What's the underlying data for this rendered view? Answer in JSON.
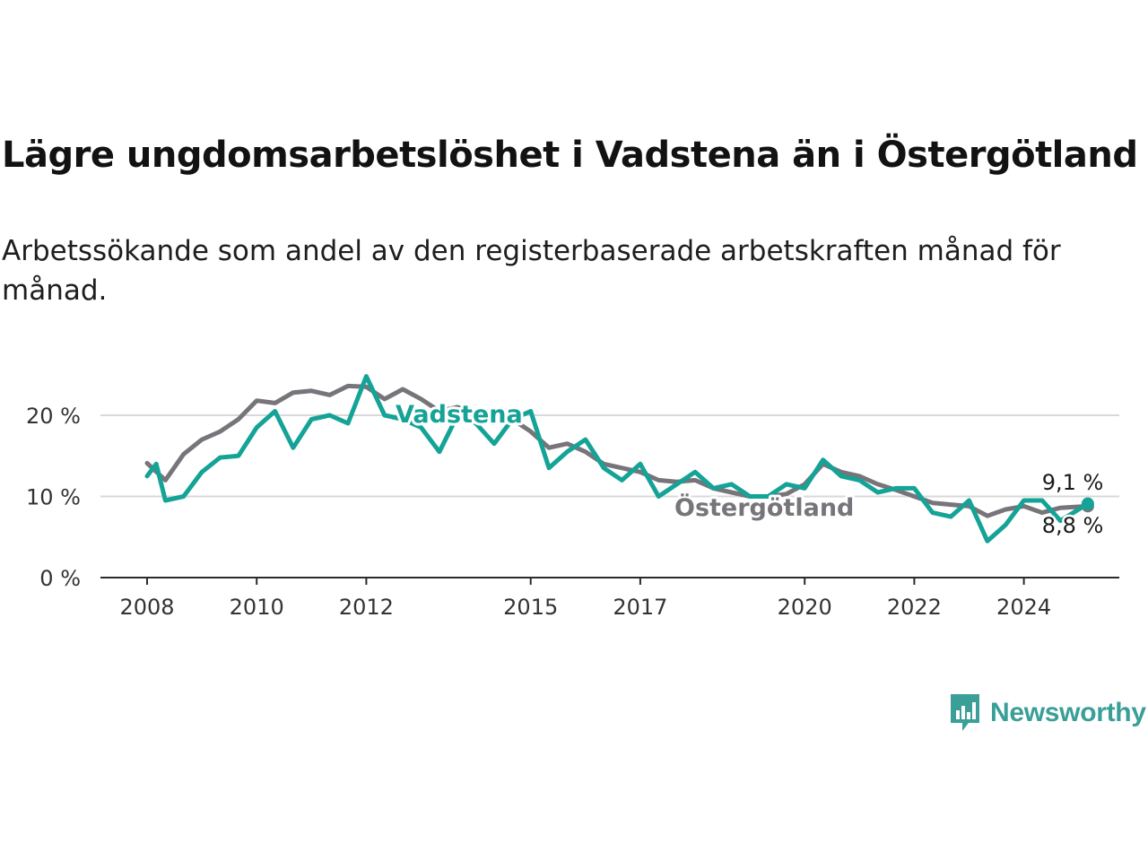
{
  "header": {
    "title": "Lägre ungdomsarbetslöshet i Vadstena än i Östergötland",
    "subtitle": "Arbetssökande som andel av den registerbaserade arbetskraften månad för månad."
  },
  "brand": {
    "name": "Newsworthy",
    "icon": "newsworthy-logo-icon",
    "color": "#3a9f98"
  },
  "chart_data": {
    "type": "line",
    "title": "Lägre ungdomsarbetslöshet i Vadstena än i Östergötland",
    "subtitle": "Arbetssökande som andel av den registerbaserade arbetskraften månad för månad.",
    "xlabel": "",
    "ylabel": "",
    "x_ticks": [
      "2008",
      "2010",
      "2012",
      "2015",
      "2017",
      "2020",
      "2022",
      "2024"
    ],
    "y_ticks": [
      "0 %",
      "10 %",
      "20 %"
    ],
    "ylim": [
      0,
      25
    ],
    "xlim": [
      "2007-03",
      "2025-09"
    ],
    "grid": "horizontal",
    "legend": "inline labels",
    "series": [
      {
        "name": "Östergötland",
        "color": "#77747a",
        "end_label": "8,8 %",
        "points": [
          [
            "2008-01",
            14.1
          ],
          [
            "2008-05",
            12.0
          ],
          [
            "2008-09",
            15.2
          ],
          [
            "2009-01",
            17.0
          ],
          [
            "2009-05",
            18.0
          ],
          [
            "2009-09",
            19.5
          ],
          [
            "2010-01",
            21.8
          ],
          [
            "2010-05",
            21.5
          ],
          [
            "2010-09",
            22.8
          ],
          [
            "2011-01",
            23.0
          ],
          [
            "2011-05",
            22.5
          ],
          [
            "2011-09",
            23.6
          ],
          [
            "2012-01",
            23.5
          ],
          [
            "2012-05",
            22.0
          ],
          [
            "2012-09",
            23.2
          ],
          [
            "2013-01",
            22.0
          ],
          [
            "2013-05",
            20.5
          ],
          [
            "2013-09",
            21.0
          ],
          [
            "2014-01",
            20.0
          ],
          [
            "2014-05",
            19.2
          ],
          [
            "2014-09",
            19.5
          ],
          [
            "2015-01",
            18.0
          ],
          [
            "2015-05",
            16.0
          ],
          [
            "2015-09",
            16.5
          ],
          [
            "2016-01",
            15.5
          ],
          [
            "2016-05",
            14.0
          ],
          [
            "2016-09",
            13.5
          ],
          [
            "2017-01",
            13.0
          ],
          [
            "2017-05",
            12.0
          ],
          [
            "2017-09",
            11.8
          ],
          [
            "2018-01",
            12.0
          ],
          [
            "2018-05",
            11.0
          ],
          [
            "2018-09",
            10.5
          ],
          [
            "2019-01",
            10.0
          ],
          [
            "2019-05",
            10.0
          ],
          [
            "2019-09",
            10.3
          ],
          [
            "2020-01",
            11.5
          ],
          [
            "2020-05",
            14.0
          ],
          [
            "2020-09",
            13.0
          ],
          [
            "2021-01",
            12.5
          ],
          [
            "2021-05",
            11.5
          ],
          [
            "2021-09",
            10.8
          ],
          [
            "2022-01",
            10.0
          ],
          [
            "2022-05",
            9.2
          ],
          [
            "2022-09",
            9.0
          ],
          [
            "2023-01",
            8.8
          ],
          [
            "2023-05",
            7.6
          ],
          [
            "2023-09",
            8.4
          ],
          [
            "2024-01",
            8.8
          ],
          [
            "2024-05",
            8.0
          ],
          [
            "2024-09",
            8.6
          ],
          [
            "2025-03",
            8.8
          ]
        ]
      },
      {
        "name": "Vadstena",
        "color": "#14a396",
        "end_label": "9,1 %",
        "points": [
          [
            "2008-01",
            12.5
          ],
          [
            "2008-03",
            14.0
          ],
          [
            "2008-05",
            9.5
          ],
          [
            "2008-09",
            10.0
          ],
          [
            "2009-01",
            13.0
          ],
          [
            "2009-05",
            14.8
          ],
          [
            "2009-09",
            15.0
          ],
          [
            "2010-01",
            18.5
          ],
          [
            "2010-05",
            20.5
          ],
          [
            "2010-09",
            16.0
          ],
          [
            "2011-01",
            19.5
          ],
          [
            "2011-05",
            20.0
          ],
          [
            "2011-09",
            19.0
          ],
          [
            "2012-01",
            24.8
          ],
          [
            "2012-05",
            20.0
          ],
          [
            "2012-09",
            19.5
          ],
          [
            "2013-01",
            18.5
          ],
          [
            "2013-05",
            15.5
          ],
          [
            "2013-09",
            20.0
          ],
          [
            "2014-01",
            19.0
          ],
          [
            "2014-05",
            16.5
          ],
          [
            "2014-09",
            19.5
          ],
          [
            "2015-01",
            20.5
          ],
          [
            "2015-05",
            13.5
          ],
          [
            "2015-09",
            15.5
          ],
          [
            "2016-01",
            17.0
          ],
          [
            "2016-05",
            13.5
          ],
          [
            "2016-09",
            12.0
          ],
          [
            "2017-01",
            14.0
          ],
          [
            "2017-05",
            10.0
          ],
          [
            "2017-09",
            11.5
          ],
          [
            "2018-01",
            13.0
          ],
          [
            "2018-05",
            11.0
          ],
          [
            "2018-09",
            11.5
          ],
          [
            "2019-01",
            10.0
          ],
          [
            "2019-05",
            10.0
          ],
          [
            "2019-09",
            11.5
          ],
          [
            "2020-01",
            11.0
          ],
          [
            "2020-05",
            14.5
          ],
          [
            "2020-09",
            12.5
          ],
          [
            "2021-01",
            12.0
          ],
          [
            "2021-05",
            10.5
          ],
          [
            "2021-09",
            11.0
          ],
          [
            "2022-01",
            11.0
          ],
          [
            "2022-05",
            8.0
          ],
          [
            "2022-09",
            7.5
          ],
          [
            "2023-01",
            9.5
          ],
          [
            "2023-05",
            4.5
          ],
          [
            "2023-09",
            6.5
          ],
          [
            "2024-01",
            9.5
          ],
          [
            "2024-05",
            9.5
          ],
          [
            "2024-09",
            7.0
          ],
          [
            "2025-03",
            9.1
          ]
        ]
      }
    ]
  }
}
